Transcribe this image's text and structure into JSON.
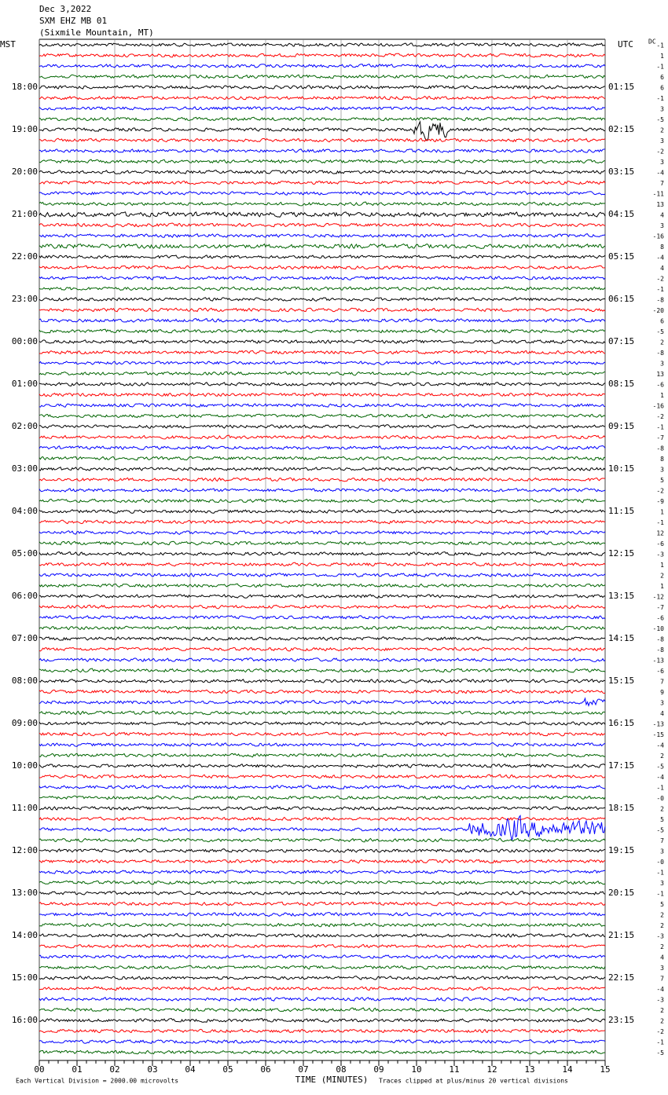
{
  "chart_data": {
    "type": "helicorder",
    "title": [
      "Dec 3,2022",
      "SXM EHZ MB 01",
      "(Sixmile Mountain, MT)"
    ],
    "left_axis_title": "MST",
    "right_axis_title": "UTC",
    "dc_label": "DC",
    "left_labels": [
      "18:00",
      "19:00",
      "20:00",
      "21:00",
      "22:00",
      "23:00",
      "00:00",
      "01:00",
      "02:00",
      "03:00",
      "04:00",
      "05:00",
      "06:00",
      "07:00",
      "08:00",
      "09:00",
      "10:00",
      "11:00",
      "12:00",
      "13:00",
      "14:00",
      "15:00",
      "16:00"
    ],
    "right_labels": [
      "01:15",
      "02:15",
      "03:15",
      "04:15",
      "05:15",
      "06:15",
      "07:15",
      "08:15",
      "09:15",
      "10:15",
      "11:15",
      "12:15",
      "13:15",
      "14:15",
      "15:15",
      "16:15",
      "17:15",
      "18:15",
      "19:15",
      "20:15",
      "21:15",
      "22:15",
      "23:15"
    ],
    "dc_offsets": [
      -1,
      1,
      -1,
      6,
      6,
      -1,
      3,
      -5,
      2,
      3,
      -2,
      3,
      -4,
      7,
      -11,
      13,
      4,
      3,
      -16,
      8,
      -4,
      4,
      -2,
      -1,
      -8,
      -20,
      6,
      -5,
      2,
      -8,
      3,
      13,
      -6,
      1,
      -16,
      -2,
      -1,
      -7,
      -8,
      8,
      3,
      5,
      -2,
      -9,
      1,
      -1,
      12,
      -6,
      -3,
      1,
      2,
      1,
      -12,
      -7,
      -6,
      -10,
      -8,
      -8,
      -13,
      -6,
      7,
      9,
      3,
      4,
      -13,
      -15,
      -4,
      2,
      -5,
      -4,
      -1,
      {
        "value": 0,
        "label": "-0"
      },
      2,
      5,
      -5,
      7,
      3,
      {
        "value": 0,
        "label": "-0"
      },
      -1,
      3,
      -1,
      5,
      2,
      2,
      -3,
      2,
      4,
      3,
      7,
      -4,
      -3,
      2,
      2,
      -2,
      -1,
      -5
    ],
    "trace_colors": [
      "#000000",
      "#ff0000",
      "#0000ff",
      "#006400"
    ],
    "xlim": [
      0,
      15
    ],
    "xticks": [
      {
        "value": 0,
        "label": "00"
      },
      {
        "value": 1,
        "label": "01"
      },
      {
        "value": 2,
        "label": "02"
      },
      {
        "value": 3,
        "label": "03"
      },
      {
        "value": 4,
        "label": "04"
      },
      {
        "value": 5,
        "label": "05"
      },
      {
        "value": 6,
        "label": "06"
      },
      {
        "value": 7,
        "label": "07"
      },
      {
        "value": 8,
        "label": "08"
      },
      {
        "value": 9,
        "label": "09"
      },
      10,
      11,
      12,
      13,
      14,
      15
    ],
    "xlabel": "TIME (MINUTES)",
    "footer_left": "Each Vertical Division = 2000.00 microvolts",
    "footer_right": "Traces clipped at plus/minus 20 vertical divisions"
  }
}
